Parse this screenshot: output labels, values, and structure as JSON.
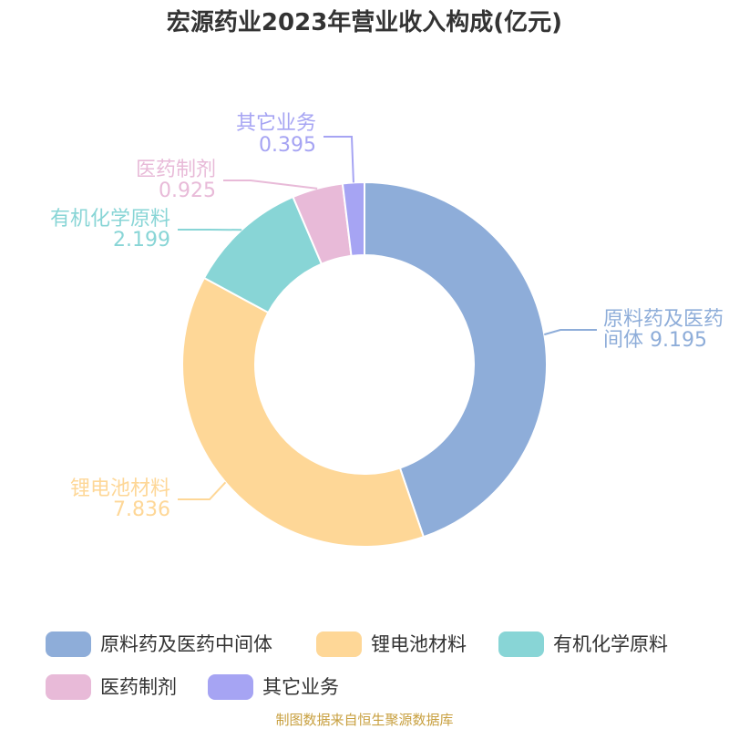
{
  "chart_data": {
    "type": "pie",
    "variant": "donut",
    "title": "宏源药业2023年营业收入构成(亿元)",
    "legend_position": "bottom",
    "slices": [
      {
        "label": "原料药及医药中间体",
        "label_line1": "原料药及医药",
        "label_line2": "间体 9.195",
        "value": 9.195,
        "value_text": "9.195",
        "color": "#8eadd9"
      },
      {
        "label": "锂电池材料",
        "label_line1": "锂电池材料",
        "label_line2": "7.836",
        "value": 7.836,
        "value_text": "7.836",
        "color": "#fed797"
      },
      {
        "label": "有机化学原料",
        "label_line1": "有机化学原料",
        "label_line2": "2.199",
        "value": 2.199,
        "value_text": "2.199",
        "color": "#88d5d6"
      },
      {
        "label": "医药制剂",
        "label_line1": "医药制剂",
        "label_line2": "0.925",
        "value": 0.925,
        "value_text": "0.925",
        "color": "#e8bad8"
      },
      {
        "label": "其它业务",
        "label_line1": "其它业务",
        "label_line2": "0.395",
        "value": 0.395,
        "value_text": "0.395",
        "color": "#a6a4f3"
      }
    ]
  },
  "footer": {
    "source": "制图数据来自恒生聚源数据库"
  }
}
